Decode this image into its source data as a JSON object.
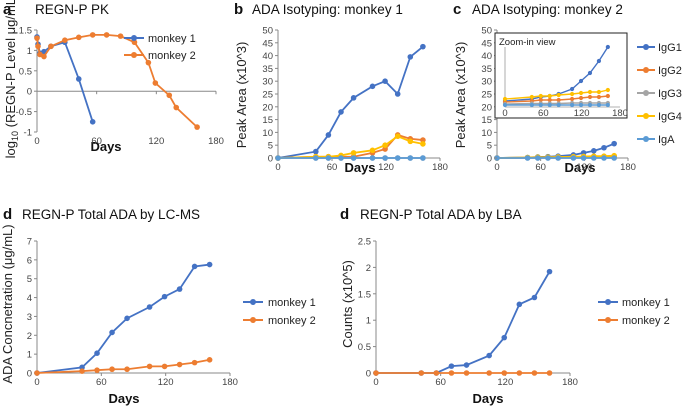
{
  "colors": {
    "monkey1": "#4472C4",
    "monkey2": "#ED7D31",
    "IgG1": "#4472C4",
    "IgG2": "#ED7D31",
    "IgG3": "#A5A5A5",
    "IgG4": "#FFC000",
    "IgA": "#5B9BD5"
  },
  "chart_data": [
    {
      "id": "a",
      "panel_label": "a",
      "type": "line",
      "title": "REGN-P PK",
      "xlabel": "Days",
      "ylabel": "log10 (REGN-P Level μg/mL)",
      "ylabel_parts": {
        "prefix": "log",
        "sub": "10",
        "suffix": " (REGN-P Level μg/mL)"
      },
      "xlim": [
        0,
        180
      ],
      "ylim": [
        -1,
        1.5
      ],
      "xticks": [
        "0",
        "60",
        "120",
        "180"
      ],
      "yticks": [
        "-1",
        "-0.5",
        "0",
        "0.5",
        "1",
        "1.5"
      ],
      "series": [
        {
          "name": "monkey 1",
          "x": [
            0,
            1,
            3,
            7,
            14,
            28,
            42,
            56
          ],
          "y": [
            1.33,
            1.15,
            0.93,
            0.97,
            1.1,
            1.2,
            0.3,
            -0.75
          ]
        },
        {
          "name": "monkey 2",
          "x": [
            0,
            1,
            3,
            7,
            14,
            28,
            42,
            56,
            70,
            84,
            98,
            112,
            119,
            133,
            140,
            161
          ],
          "y": [
            1.3,
            1.1,
            0.9,
            0.85,
            1.1,
            1.25,
            1.32,
            1.38,
            1.38,
            1.35,
            1.2,
            0.7,
            0.2,
            -0.1,
            -0.4,
            -0.88
          ]
        }
      ]
    },
    {
      "id": "b",
      "panel_label": "b",
      "type": "line",
      "title": "ADA Isotyping: monkey 1",
      "xlabel": "Days",
      "ylabel": "Peak Area (x10^3)",
      "xlim": [
        0,
        180
      ],
      "ylim": [
        0,
        50
      ],
      "xticks": [
        "0",
        "60",
        "120",
        "180"
      ],
      "yticks": [
        "0",
        "5",
        "10",
        "15",
        "20",
        "25",
        "30",
        "35",
        "40",
        "45",
        "50"
      ],
      "x": [
        0,
        42,
        56,
        70,
        84,
        105,
        119,
        133,
        147,
        161
      ],
      "series": [
        {
          "name": "IgG1",
          "values": [
            0,
            2.5,
            9,
            18,
            23.5,
            28,
            30,
            25,
            39.5,
            43.5
          ]
        },
        {
          "name": "IgG2",
          "values": [
            0,
            0.5,
            0.5,
            0.5,
            0.5,
            2,
            3.5,
            9,
            7.5,
            7
          ]
        },
        {
          "name": "IgG3",
          "values": [
            0,
            0,
            0,
            0,
            0,
            0,
            0,
            0,
            0,
            0
          ]
        },
        {
          "name": "IgG4",
          "values": [
            0,
            0.5,
            0.5,
            1,
            2,
            3,
            5,
            8.5,
            6.5,
            5.5
          ]
        },
        {
          "name": "IgA",
          "values": [
            0,
            0,
            0,
            0,
            0,
            0,
            0,
            0,
            0,
            0
          ]
        }
      ]
    },
    {
      "id": "c",
      "panel_label": "c",
      "type": "line",
      "title": "ADA Isotyping: monkey 2",
      "xlabel": "Days",
      "ylabel": "Peak Area (x10^3)",
      "xlim": [
        0,
        180
      ],
      "ylim": [
        0,
        50
      ],
      "xticks": [
        "0",
        "60",
        "120",
        "180"
      ],
      "yticks": [
        "0",
        "5",
        "10",
        "15",
        "20",
        "25",
        "30",
        "35",
        "40",
        "45",
        "50"
      ],
      "legend": [
        "IgG1",
        "IgG2",
        "IgG3",
        "IgG4",
        "IgA"
      ],
      "inset_title": "Zoom-in view",
      "inset_xticks": [
        "0",
        "60",
        "120",
        "180"
      ],
      "x": [
        0,
        42,
        56,
        70,
        84,
        105,
        119,
        133,
        147,
        161
      ],
      "series": [
        {
          "name": "IgG1",
          "values": [
            0,
            0.2,
            0.4,
            0.5,
            0.7,
            1.2,
            2.0,
            2.8,
            4.0,
            5.6
          ]
        },
        {
          "name": "IgG2",
          "values": [
            0,
            0.1,
            0.2,
            0.2,
            0.2,
            0.3,
            0.4,
            0.5,
            0.5,
            0.6
          ]
        },
        {
          "name": "IgG3",
          "values": [
            0,
            0.05,
            0.05,
            0.05,
            0.05,
            0.1,
            0.1,
            0.1,
            0.1,
            0.1
          ]
        },
        {
          "name": "IgG4",
          "values": [
            0,
            0.2,
            0.3,
            0.3,
            0.4,
            0.5,
            0.6,
            0.7,
            0.7,
            0.9
          ]
        },
        {
          "name": "IgA",
          "values": [
            0,
            0,
            0,
            0,
            0,
            0,
            0,
            0,
            0,
            0
          ]
        }
      ]
    },
    {
      "id": "d1",
      "panel_label": "d",
      "type": "line",
      "title": "REGN-P Total ADA by LC-MS",
      "xlabel": "Days",
      "ylabel": "ADA Concnetration (μg/mL)",
      "xlim": [
        0,
        180
      ],
      "ylim": [
        0,
        7
      ],
      "xticks": [
        "0",
        "60",
        "120",
        "180"
      ],
      "yticks": [
        "0",
        "1",
        "2",
        "3",
        "4",
        "5",
        "6",
        "7"
      ],
      "series": [
        {
          "name": "monkey 1",
          "x": [
            0,
            42,
            56,
            70,
            84,
            105,
            119,
            133,
            147,
            161
          ],
          "y": [
            0,
            0.3,
            1.05,
            2.15,
            2.9,
            3.5,
            4.05,
            4.45,
            5.65,
            5.75
          ]
        },
        {
          "name": "monkey 2",
          "x": [
            0,
            42,
            56,
            70,
            84,
            105,
            119,
            133,
            147,
            161
          ],
          "y": [
            0,
            0.1,
            0.15,
            0.2,
            0.2,
            0.35,
            0.35,
            0.45,
            0.55,
            0.7
          ]
        }
      ]
    },
    {
      "id": "d2",
      "panel_label": "d",
      "type": "line",
      "title": "REGN-P Total ADA by LBA",
      "xlabel": "Days",
      "ylabel": "Counts (x10^5)",
      "xlim": [
        0,
        180
      ],
      "ylim": [
        0,
        2.5
      ],
      "xticks": [
        "0",
        "60",
        "120",
        "180"
      ],
      "yticks": [
        "0",
        "0.5",
        "1",
        "1.5",
        "2",
        "2.5"
      ],
      "series": [
        {
          "name": "monkey 1",
          "x": [
            0,
            42,
            56,
            70,
            84,
            105,
            119,
            133,
            147,
            161
          ],
          "y": [
            0,
            0,
            0,
            0.13,
            0.15,
            0.33,
            0.67,
            1.3,
            1.43,
            1.92
          ]
        },
        {
          "name": "monkey 2",
          "x": [
            0,
            42,
            56,
            70,
            84,
            105,
            119,
            133,
            147,
            161
          ],
          "y": [
            0,
            0,
            0,
            0,
            0,
            0,
            0,
            0,
            0,
            0
          ]
        }
      ]
    }
  ]
}
